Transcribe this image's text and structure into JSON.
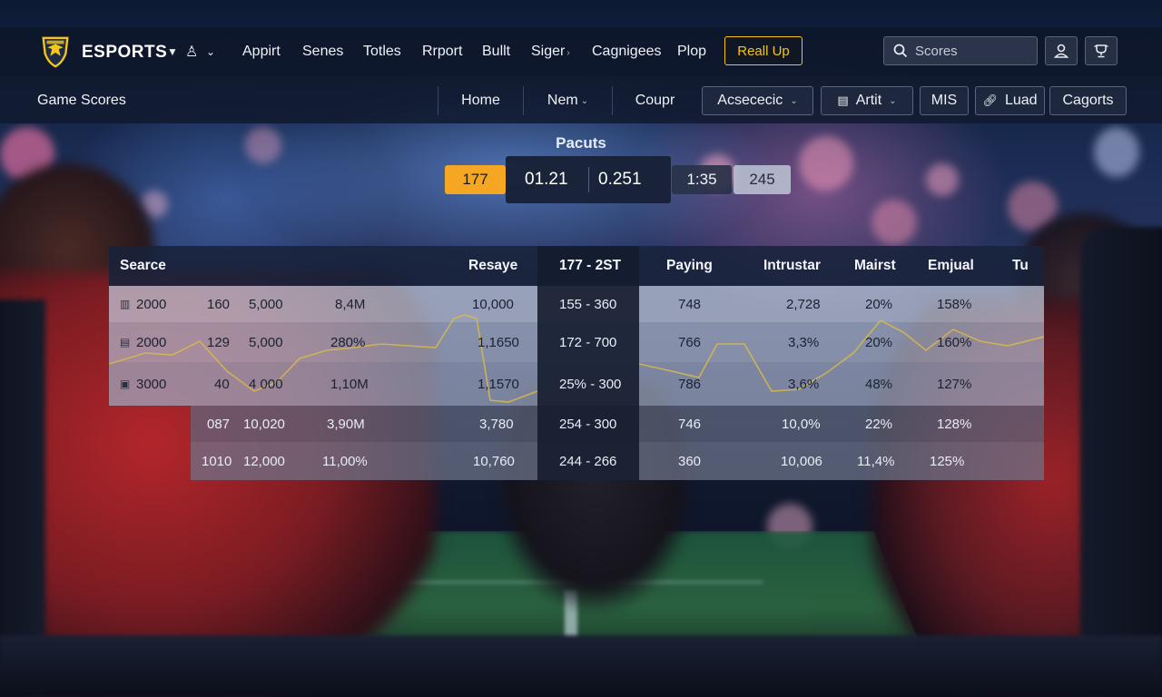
{
  "brand": {
    "name": "ESPORTS",
    "logo_icon": "shield-eagle-icon",
    "accent": "#f5c518"
  },
  "topnav": {
    "links": [
      {
        "label": "Appirt"
      },
      {
        "label": "Senes"
      },
      {
        "label": "Totles"
      },
      {
        "label": "Rrport"
      },
      {
        "label": "Bullt"
      },
      {
        "label": "Siger",
        "has_caret": true
      },
      {
        "label": "Cagnigees"
      },
      {
        "label": "Plop"
      }
    ],
    "cta_label": "Reall Up",
    "search_placeholder": "Scores",
    "user_icon": "user-icon",
    "gift_icon": "trophy-icon"
  },
  "subnav": {
    "title": "Game Scores",
    "tabs": [
      {
        "label": "Home"
      },
      {
        "label": "Nem"
      },
      {
        "label": "Coupr"
      }
    ],
    "buttons": [
      {
        "label": "Acsececic"
      },
      {
        "label": "Artit"
      },
      {
        "label": "MIS"
      },
      {
        "label": "Luad"
      },
      {
        "label": "Cagorts"
      }
    ]
  },
  "scoreboard": {
    "title": "Pacuts",
    "chip_left": "177",
    "score_a": "01.21",
    "score_b": "0.251",
    "chip_time": "1:35",
    "chip_right": "245",
    "highlight_color": "#f5a623"
  },
  "table": {
    "headers": {
      "c0": "Searce",
      "c1": "Resaye",
      "c2": "177 - 2ST",
      "c3": "Paying",
      "c4": "Intrustar",
      "c5": "Mairst",
      "c6": "Emjual",
      "c7": "Tu"
    },
    "rows": [
      {
        "a": "2000",
        "b": "160",
        "c": "5,000",
        "d": "8,4M",
        "e": "10,000",
        "f": "155 - 360",
        "g": "748",
        "h": "2,728",
        "i": "20%",
        "j": "158%"
      },
      {
        "a": "2000",
        "b": "129",
        "c": "5,000",
        "d": "280%",
        "e": "1,1650",
        "f": "172 - 700",
        "g": "766",
        "h": "3,3%",
        "i": "20%",
        "j": "160%"
      },
      {
        "a": "3000",
        "b": "40",
        "c": "4 000",
        "d": "1,10M",
        "e": "1,1570",
        "f": "25% - 300",
        "g": "786",
        "h": "3,6%",
        "i": "48%",
        "j": "127%"
      },
      {
        "a": "",
        "b": "087",
        "c": "10,020",
        "d": "3,90M",
        "e": "3,780",
        "f": "254 - 300",
        "g": "746",
        "h": "10,0%",
        "i": "22%",
        "j": "128%"
      },
      {
        "a": "",
        "b": "1010",
        "c": "12,000",
        "d": "11,00%",
        "e": "10,760",
        "f": "244 - 266",
        "g": "360",
        "h": "10,006",
        "i": "11,4%",
        "j": "125%"
      }
    ],
    "line_color": "#d9b84a"
  }
}
